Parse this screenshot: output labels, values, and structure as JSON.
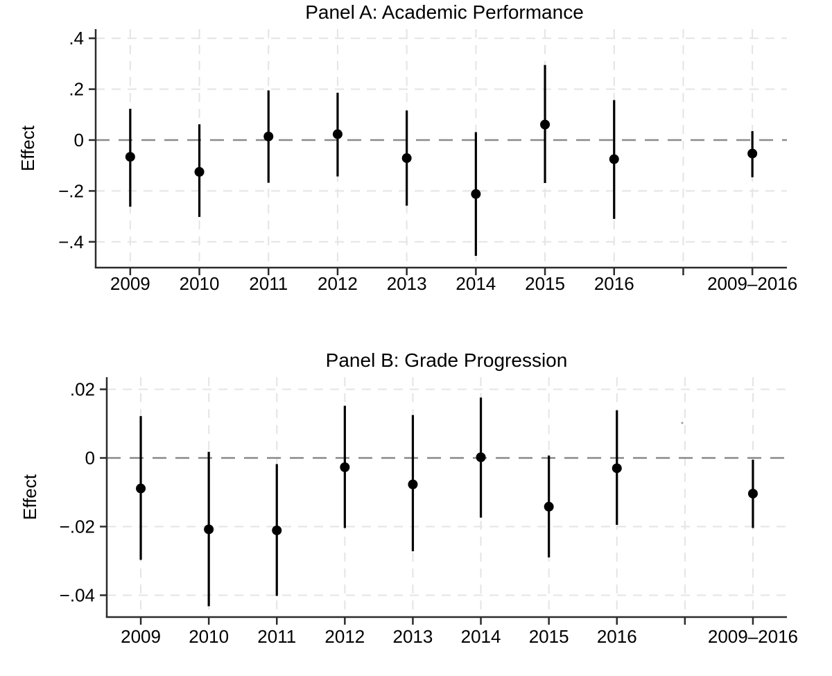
{
  "figure": {
    "background": "#ffffff",
    "panels_count": 2
  },
  "colors": {
    "point": "#000000",
    "ci_line": "#000000",
    "zero_line": "#8a8a8a",
    "gridline": "#e4e4e4",
    "axis_line": "#2b2b2b",
    "text": "#000000"
  },
  "chart_data": [
    {
      "type": "scatter",
      "subtype": "coefficient-plot-with-95ci",
      "panel_id": "A",
      "title": "Panel A: Academic Performance",
      "xlabel": "",
      "ylabel": "Effect",
      "categories": [
        "2009",
        "2010",
        "2011",
        "2012",
        "2013",
        "2014",
        "2015",
        "2016",
        "",
        "2009–2016"
      ],
      "estimates": [
        -0.066,
        -0.125,
        0.014,
        0.023,
        -0.071,
        -0.212,
        0.061,
        -0.075,
        null,
        -0.053
      ],
      "ci_low": [
        -0.262,
        -0.302,
        -0.168,
        -0.143,
        -0.258,
        -0.455,
        -0.169,
        -0.31,
        null,
        -0.146
      ],
      "ci_high": [
        0.123,
        0.062,
        0.195,
        0.186,
        0.116,
        0.031,
        0.295,
        0.157,
        null,
        0.035
      ],
      "yticks": [
        0.4,
        0.2,
        0,
        -0.2,
        -0.4
      ],
      "ytick_labels": [
        ".4",
        ".2",
        "0",
        "−.2",
        "−.4"
      ],
      "ylim": [
        -0.5,
        0.437
      ],
      "zero_reference_line": true,
      "grid": true,
      "legend": "none"
    },
    {
      "type": "scatter",
      "subtype": "coefficient-plot-with-95ci",
      "panel_id": "B",
      "title": "Panel B: Grade Progression",
      "xlabel": "",
      "ylabel": "Effect",
      "categories": [
        "2009",
        "2010",
        "2011",
        "2012",
        "2013",
        "2014",
        "2015",
        "2016",
        "",
        "2009–2016"
      ],
      "estimates": [
        -0.0089,
        -0.0208,
        -0.0211,
        -0.0027,
        -0.0077,
        0.0002,
        -0.0142,
        -0.003,
        null,
        -0.0104
      ],
      "ci_low": [
        -0.0297,
        -0.0432,
        -0.0402,
        -0.0204,
        -0.0272,
        -0.0174,
        -0.029,
        -0.0195,
        null,
        -0.0204
      ],
      "ci_high": [
        0.0122,
        0.0018,
        -0.0018,
        0.0152,
        0.0125,
        0.0176,
        0.0007,
        0.0139,
        null,
        -0.0005
      ],
      "yticks": [
        0.02,
        0,
        -0.02,
        -0.04
      ],
      "ytick_labels": [
        ".02",
        "0",
        "−.02",
        "−.04"
      ],
      "ylim": [
        -0.0465,
        0.0235
      ],
      "zero_reference_line": true,
      "grid": true,
      "legend": "none"
    }
  ]
}
